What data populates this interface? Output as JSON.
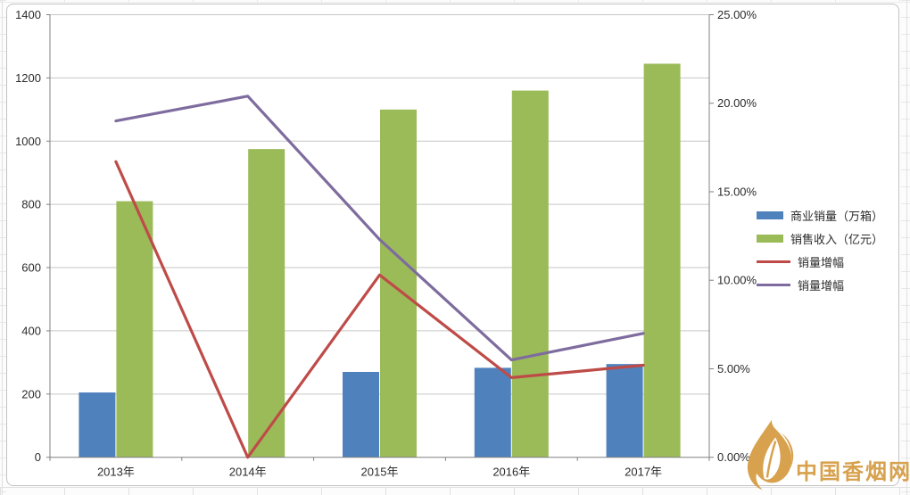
{
  "watermark": {
    "text": "中国香烟网",
    "color": "#d7a14d"
  },
  "chart_data": {
    "type": "bar",
    "subtype": "bar-line combo, dual axis",
    "title": "",
    "xlabel": "",
    "ylabel": "",
    "grid": true,
    "legend_position": "right",
    "categories": [
      "2013年",
      "2014年",
      "2015年",
      "2016年",
      "2017年"
    ],
    "series": [
      {
        "name": "商业销量（万箱）",
        "type": "bar",
        "axis": "left",
        "color": "#4f81bd",
        "values": [
          205,
          null,
          270,
          283,
          295
        ]
      },
      {
        "name": "销售收入（亿元）",
        "type": "bar",
        "axis": "left",
        "color": "#9bbb59",
        "values": [
          810,
          975,
          1100,
          1160,
          1245
        ]
      },
      {
        "name": "销量增幅",
        "type": "line",
        "axis": "right",
        "color": "#be4b48",
        "values": [
          16.7,
          0.0,
          10.3,
          4.5,
          5.2
        ]
      },
      {
        "name": "销量增幅",
        "type": "line",
        "axis": "right",
        "color": "#7e6c9e",
        "values": [
          19.0,
          20.4,
          12.3,
          5.5,
          7.0
        ]
      }
    ],
    "left_axis": {
      "min": 0,
      "max": 1400,
      "tick_step": 200,
      "tick_labels": [
        "0",
        "200",
        "400",
        "600",
        "800",
        "1000",
        "1200",
        "1400"
      ]
    },
    "right_axis": {
      "min": 0,
      "max": 25,
      "tick_step": 5,
      "tick_labels": [
        "0.00%",
        "5.00%",
        "10.00%",
        "15.00%",
        "20.00%",
        "25.00%"
      ]
    },
    "colors": {
      "gridline": "#c6c6c6",
      "axis": "#808080",
      "tick_text": "#2b2b2b"
    }
  }
}
